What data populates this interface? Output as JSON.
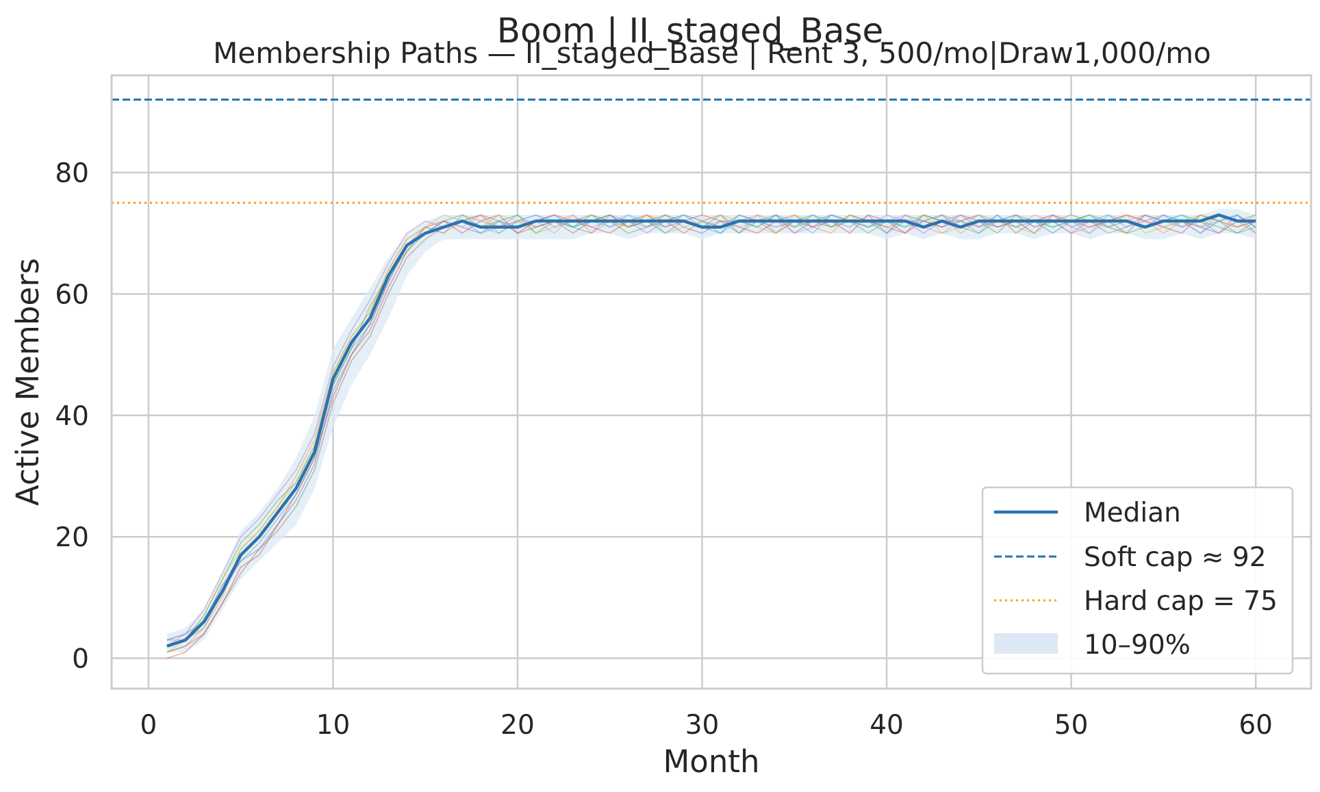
{
  "chart_data": {
    "type": "line",
    "suptitle": "Boom | II_staged_Base",
    "title": "Membership Paths — II_staged_Base | Rent $3,500/mo | Draw $1,000/mo",
    "title_display": "Membership Paths — II_staged_Base | Rent 3, 500/mo|Draw1,000/mo",
    "xlabel": "Month",
    "ylabel": "Active Members",
    "xlim": [
      -2,
      63
    ],
    "ylim": [
      -5,
      96
    ],
    "xticks": [
      0,
      10,
      20,
      30,
      40,
      50,
      60
    ],
    "yticks": [
      0,
      20,
      40,
      60,
      80
    ],
    "grid": true,
    "legend_position": "lower-right",
    "legend": [
      "Median",
      "Soft cap ≈ 92",
      "Hard cap = 75",
      "10–90%"
    ],
    "soft_cap": 92,
    "hard_cap": 75,
    "colors": {
      "median": "#2a73b0",
      "soft_cap": "#1f77b4",
      "hard_cap": "#ff9f0f",
      "band": "#dce9f4",
      "grid": "#cccccc",
      "paths": [
        "#1f77b4",
        "#ff7f0e",
        "#2ca02c",
        "#d62728",
        "#9467bd",
        "#8c564b",
        "#e377c2",
        "#7f7f7f",
        "#bcbd22",
        "#17becf"
      ]
    },
    "x": [
      1,
      2,
      3,
      4,
      5,
      6,
      7,
      8,
      9,
      10,
      11,
      12,
      13,
      14,
      15,
      16,
      17,
      18,
      19,
      20,
      21,
      22,
      23,
      24,
      25,
      26,
      27,
      28,
      29,
      30,
      31,
      32,
      33,
      34,
      35,
      36,
      37,
      38,
      39,
      40,
      41,
      42,
      43,
      44,
      45,
      46,
      47,
      48,
      49,
      50,
      51,
      52,
      53,
      54,
      55,
      56,
      57,
      58,
      59,
      60
    ],
    "median": [
      2,
      3,
      6,
      11,
      17,
      20,
      24,
      28,
      34,
      46,
      52,
      56,
      63,
      68,
      70,
      71,
      72,
      71,
      71,
      71,
      72,
      72,
      72,
      72,
      72,
      72,
      72,
      72,
      72,
      71,
      71,
      72,
      72,
      72,
      72,
      72,
      72,
      72,
      72,
      72,
      72,
      71,
      72,
      71,
      72,
      72,
      72,
      72,
      72,
      72,
      72,
      72,
      72,
      71,
      72,
      72,
      72,
      73,
      72,
      72
    ],
    "band_p10": [
      1,
      1,
      3,
      8,
      13,
      16,
      19,
      22,
      28,
      38,
      45,
      50,
      56,
      63,
      67,
      69,
      69,
      69,
      69,
      69,
      69,
      69,
      69,
      70,
      70,
      69,
      70,
      70,
      70,
      69,
      70,
      70,
      70,
      70,
      70,
      70,
      70,
      70,
      70,
      69,
      70,
      69,
      70,
      69,
      69,
      70,
      70,
      69,
      70,
      70,
      69,
      70,
      70,
      69,
      69,
      70,
      69,
      70,
      70,
      69
    ],
    "band_p90": [
      4,
      5,
      8,
      14,
      21,
      24,
      28,
      33,
      40,
      51,
      56,
      61,
      66,
      70,
      72,
      73,
      73,
      73,
      73,
      73,
      73,
      73,
      73,
      73,
      73,
      73,
      73,
      73,
      73,
      73,
      73,
      73,
      73,
      73,
      73,
      73,
      73,
      73,
      73,
      73,
      73,
      73,
      73,
      73,
      73,
      73,
      73,
      73,
      73,
      73,
      73,
      73,
      73,
      73,
      73,
      73,
      73,
      74,
      74,
      73
    ],
    "paths": [
      [
        3,
        4,
        6,
        12,
        16,
        18,
        22,
        26,
        32,
        44,
        50,
        55,
        62,
        68,
        70,
        72,
        71,
        70,
        72,
        71,
        72,
        73,
        71,
        72,
        73,
        71,
        72,
        70,
        72,
        71,
        70,
        73,
        72,
        71,
        72,
        73,
        71,
        72,
        72,
        70,
        73,
        72,
        71,
        72,
        73,
        71,
        72,
        72,
        70,
        72,
        73,
        71,
        72,
        71,
        73,
        72,
        70,
        72,
        73,
        71
      ],
      [
        1,
        2,
        5,
        10,
        18,
        21,
        25,
        30,
        36,
        47,
        53,
        57,
        64,
        69,
        71,
        70,
        72,
        73,
        70,
        72,
        71,
        72,
        73,
        70,
        72,
        71,
        73,
        72,
        70,
        72,
        71,
        72,
        73,
        70,
        72,
        71,
        70,
        73,
        72,
        71,
        72,
        71,
        73,
        70,
        72,
        72,
        71,
        73,
        72,
        70,
        71,
        72,
        73,
        72,
        70,
        72,
        71,
        73,
        72,
        70
      ],
      [
        2,
        3,
        7,
        13,
        19,
        22,
        26,
        29,
        35,
        45,
        51,
        58,
        63,
        67,
        70,
        72,
        73,
        71,
        72,
        73,
        70,
        72,
        71,
        73,
        72,
        70,
        71,
        73,
        72,
        71,
        73,
        70,
        72,
        73,
        71,
        72,
        73,
        72,
        70,
        72,
        71,
        73,
        72,
        71,
        72,
        70,
        73,
        72,
        71,
        72,
        73,
        72,
        70,
        71,
        72,
        73,
        72,
        71,
        70,
        72
      ],
      [
        0,
        1,
        4,
        9,
        15,
        17,
        22,
        27,
        33,
        43,
        50,
        54,
        61,
        67,
        71,
        72,
        70,
        72,
        73,
        70,
        72,
        73,
        72,
        71,
        70,
        72,
        73,
        71,
        72,
        73,
        72,
        71,
        70,
        72,
        73,
        71,
        72,
        70,
        73,
        72,
        70,
        72,
        71,
        73,
        72,
        71,
        72,
        70,
        73,
        72,
        71,
        72,
        73,
        72,
        71,
        70,
        73,
        72,
        71,
        72
      ],
      [
        3,
        4,
        8,
        14,
        20,
        23,
        27,
        31,
        37,
        48,
        54,
        59,
        65,
        70,
        72,
        71,
        72,
        70,
        71,
        72,
        73,
        71,
        72,
        73,
        71,
        72,
        70,
        72,
        73,
        72,
        71,
        73,
        72,
        70,
        72,
        71,
        73,
        72,
        71,
        73,
        72,
        70,
        72,
        73,
        71,
        72,
        73,
        71,
        72,
        70,
        72,
        73,
        71,
        72,
        73,
        71,
        72,
        70,
        73,
        71
      ],
      [
        1,
        2,
        4,
        9,
        14,
        18,
        21,
        25,
        31,
        42,
        49,
        53,
        60,
        66,
        69,
        71,
        72,
        73,
        72,
        70,
        71,
        72,
        70,
        72,
        73,
        71,
        72,
        73,
        71,
        70,
        72,
        72,
        71,
        73,
        70,
        72,
        71,
        73,
        72,
        71,
        70,
        73,
        72,
        72,
        71,
        73,
        70,
        72,
        73,
        71,
        72,
        71,
        70,
        73,
        72,
        72,
        71,
        70,
        72,
        73
      ],
      [
        2,
        4,
        6,
        12,
        17,
        20,
        24,
        28,
        34,
        46,
        52,
        56,
        63,
        68,
        70,
        72,
        71,
        73,
        71,
        72,
        72,
        70,
        73,
        71,
        72,
        73,
        71,
        72,
        70,
        72,
        73,
        71,
        72,
        72,
        70,
        71,
        73,
        72,
        71,
        72,
        73,
        71,
        70,
        72,
        73,
        72,
        71,
        72,
        73,
        71,
        70,
        72,
        72,
        73,
        71,
        72,
        70,
        73,
        71,
        72
      ],
      [
        3,
        3,
        5,
        11,
        16,
        19,
        23,
        27,
        33,
        45,
        51,
        55,
        62,
        68,
        71,
        70,
        73,
        72,
        71,
        73,
        71,
        72,
        71,
        70,
        73,
        72,
        71,
        72,
        73,
        71,
        72,
        70,
        73,
        72,
        71,
        73,
        72,
        71,
        73,
        70,
        72,
        72,
        73,
        71,
        70,
        72,
        73,
        71,
        72,
        73,
        72,
        70,
        71,
        73,
        72,
        71,
        73,
        72,
        70,
        71
      ],
      [
        1,
        3,
        7,
        13,
        18,
        21,
        25,
        29,
        35,
        47,
        53,
        57,
        64,
        69,
        71,
        73,
        72,
        71,
        73,
        72,
        70,
        71,
        72,
        73,
        72,
        71,
        73,
        70,
        71,
        72,
        73,
        72,
        71,
        70,
        73,
        72,
        71,
        73,
        71,
        72,
        72,
        73,
        70,
        71,
        73,
        72,
        71,
        70,
        72,
        73,
        72,
        71,
        73,
        70,
        71,
        72,
        73,
        72,
        71,
        73
      ],
      [
        2,
        3,
        6,
        11,
        17,
        20,
        24,
        28,
        34,
        46,
        52,
        56,
        63,
        68,
        70,
        71,
        72,
        71,
        70,
        72,
        73,
        72,
        71,
        72,
        71,
        73,
        72,
        71,
        73,
        72,
        70,
        72,
        71,
        73,
        72,
        70,
        73,
        72,
        71,
        72,
        71,
        72,
        73,
        72,
        70,
        73,
        71,
        72,
        71,
        72,
        70,
        73,
        72,
        71,
        72,
        73,
        71,
        72,
        73,
        70
      ]
    ]
  }
}
